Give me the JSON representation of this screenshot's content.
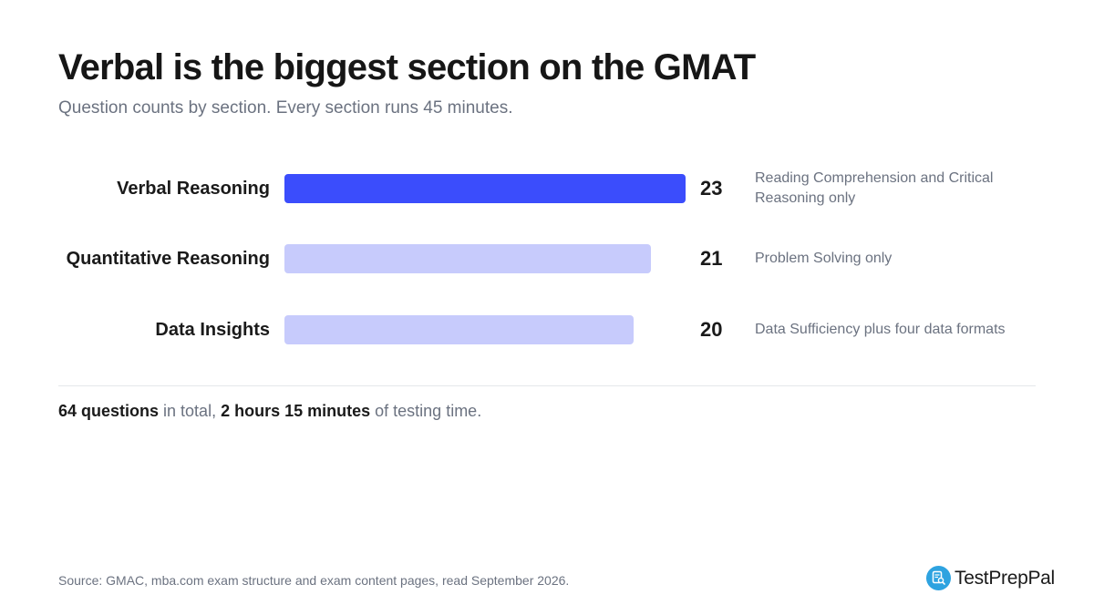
{
  "title": "Verbal is the biggest section on the GMAT",
  "subtitle": "Question counts by section. Every section runs 45 minutes.",
  "chart_data": {
    "type": "bar",
    "orientation": "horizontal",
    "categories": [
      "Verbal Reasoning",
      "Quantitative Reasoning",
      "Data Insights"
    ],
    "values": [
      23,
      21,
      20
    ],
    "value_labels": [
      "23",
      "21",
      "20"
    ],
    "annotations": [
      "Reading Comprehension and Critical Reasoning only",
      "Problem Solving only",
      "Data Sufficiency plus four data formats"
    ],
    "highlight_index": 0,
    "colors": {
      "highlight": "#3b4dfc",
      "default": "#c7cbfc"
    },
    "xlim": [
      0,
      23
    ],
    "grid": false,
    "legend": "none"
  },
  "summary": {
    "questions": "64 questions",
    "mid": " in total, ",
    "time": "2 hours 15 minutes",
    "end": " of testing time."
  },
  "source": "Source: GMAC, mba.com exam structure and exam content pages, read September 2026.",
  "brand": {
    "name": "TestPrepPal",
    "icon": "document-magnifier-icon",
    "color": "#2ea3e0"
  }
}
